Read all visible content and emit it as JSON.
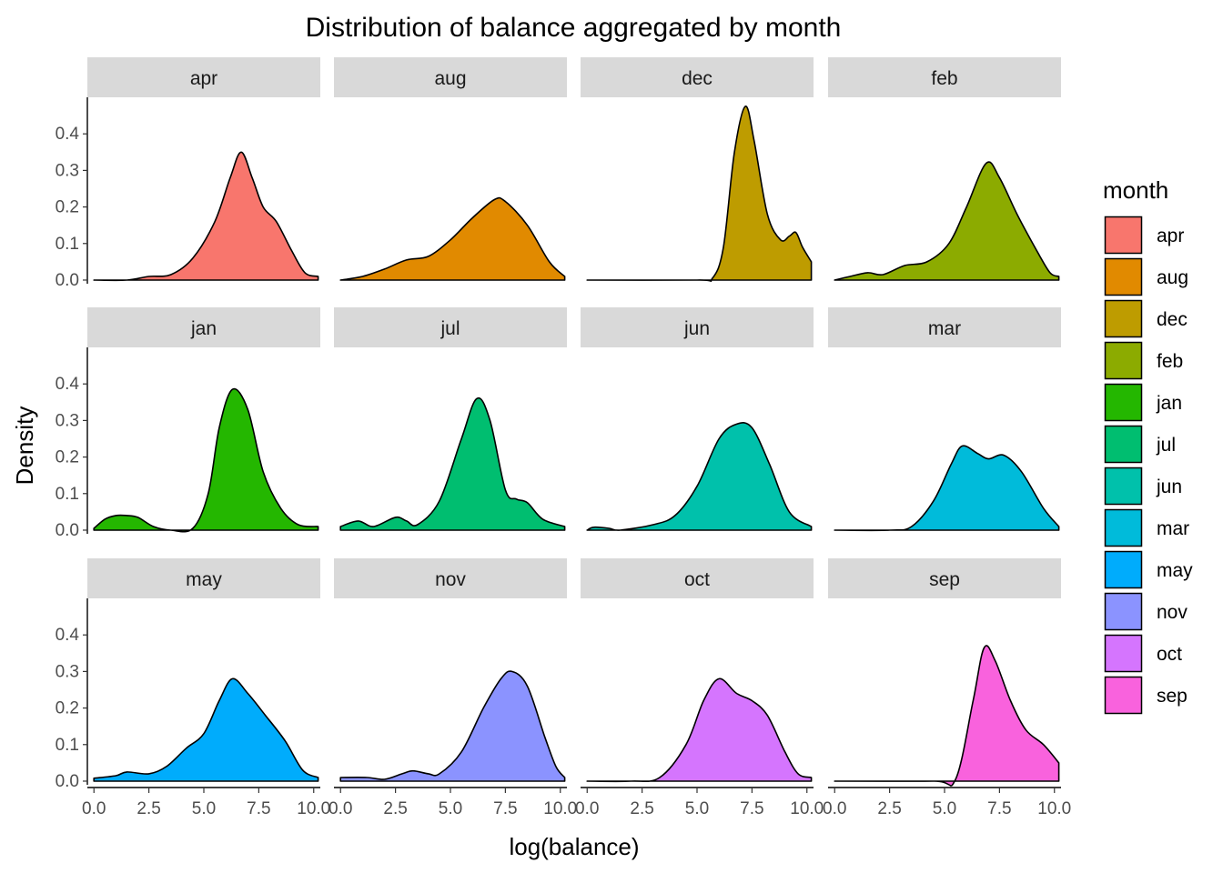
{
  "chart_data": {
    "type": "area",
    "subtype": "faceted density",
    "title": "Distribution of balance aggregated by month",
    "xlabel": "log(balance)",
    "ylabel": "Density",
    "xlim": [
      -0.3,
      10.3
    ],
    "ylim": [
      -0.01,
      0.5
    ],
    "x_ticks": [
      0,
      2.5,
      5,
      7.5,
      10
    ],
    "x_tick_labels": [
      "0.0",
      "2.5",
      "5.0",
      "7.5",
      "10.0"
    ],
    "y_ticks": [
      0,
      0.1,
      0.2,
      0.3,
      0.4
    ],
    "y_tick_labels": [
      "0.0",
      "0.1",
      "0.2",
      "0.3",
      "0.4"
    ],
    "grid": false,
    "legend": {
      "title": "month",
      "position": "right"
    },
    "facets": [
      {
        "name": "apr",
        "color": "#F8766D",
        "points": [
          [
            0,
            0
          ],
          [
            1.5,
            0
          ],
          [
            2.5,
            0.01
          ],
          [
            3.5,
            0.015
          ],
          [
            4.5,
            0.06
          ],
          [
            5.5,
            0.16
          ],
          [
            6.2,
            0.28
          ],
          [
            6.7,
            0.35
          ],
          [
            7.2,
            0.28
          ],
          [
            7.7,
            0.2
          ],
          [
            8.3,
            0.16
          ],
          [
            9,
            0.08
          ],
          [
            9.6,
            0.02
          ],
          [
            10.2,
            0.01
          ]
        ]
      },
      {
        "name": "aug",
        "color": "#E18A00",
        "points": [
          [
            0,
            0
          ],
          [
            1,
            0.01
          ],
          [
            2,
            0.03
          ],
          [
            3,
            0.055
          ],
          [
            4,
            0.065
          ],
          [
            5,
            0.11
          ],
          [
            6,
            0.17
          ],
          [
            7,
            0.22
          ],
          [
            7.5,
            0.215
          ],
          [
            8.5,
            0.15
          ],
          [
            9.5,
            0.05
          ],
          [
            10.2,
            0.01
          ]
        ]
      },
      {
        "name": "dec",
        "color": "#BE9C00",
        "points": [
          [
            0,
            0
          ],
          [
            5,
            0
          ],
          [
            5.7,
            0.005
          ],
          [
            6.2,
            0.09
          ],
          [
            6.7,
            0.35
          ],
          [
            7.2,
            0.475
          ],
          [
            7.6,
            0.38
          ],
          [
            8.2,
            0.18
          ],
          [
            8.8,
            0.11
          ],
          [
            9.2,
            0.12
          ],
          [
            9.5,
            0.13
          ],
          [
            9.8,
            0.09
          ],
          [
            10.2,
            0.05
          ]
        ]
      },
      {
        "name": "feb",
        "color": "#8CAB00",
        "points": [
          [
            0,
            0
          ],
          [
            0.7,
            0.01
          ],
          [
            1.5,
            0.02
          ],
          [
            2.2,
            0.015
          ],
          [
            3.2,
            0.04
          ],
          [
            4.2,
            0.05
          ],
          [
            5.2,
            0.1
          ],
          [
            6,
            0.2
          ],
          [
            6.9,
            0.32
          ],
          [
            7.5,
            0.28
          ],
          [
            8.3,
            0.18
          ],
          [
            9.2,
            0.08
          ],
          [
            9.8,
            0.02
          ],
          [
            10.2,
            0.01
          ]
        ]
      },
      {
        "name": "jan",
        "color": "#24B700",
        "points": [
          [
            0,
            0.005
          ],
          [
            0.5,
            0.03
          ],
          [
            1,
            0.04
          ],
          [
            1.5,
            0.04
          ],
          [
            2,
            0.035
          ],
          [
            2.7,
            0.01
          ],
          [
            3.5,
            0
          ],
          [
            4.5,
            0.005
          ],
          [
            5.2,
            0.1
          ],
          [
            5.7,
            0.28
          ],
          [
            6.3,
            0.385
          ],
          [
            7,
            0.33
          ],
          [
            7.7,
            0.16
          ],
          [
            8.5,
            0.06
          ],
          [
            9.3,
            0.015
          ],
          [
            10.2,
            0.01
          ]
        ]
      },
      {
        "name": "jul",
        "color": "#00BE70",
        "points": [
          [
            0,
            0.01
          ],
          [
            0.8,
            0.025
          ],
          [
            1.5,
            0.01
          ],
          [
            2.5,
            0.035
          ],
          [
            3,
            0.025
          ],
          [
            3.5,
            0.015
          ],
          [
            4.5,
            0.08
          ],
          [
            5.5,
            0.25
          ],
          [
            6.2,
            0.36
          ],
          [
            6.8,
            0.3
          ],
          [
            7.5,
            0.11
          ],
          [
            8,
            0.085
          ],
          [
            8.5,
            0.075
          ],
          [
            9.2,
            0.03
          ],
          [
            10.2,
            0.01
          ]
        ]
      },
      {
        "name": "jun",
        "color": "#00C1AB",
        "points": [
          [
            0,
            0
          ],
          [
            0.3,
            0.008
          ],
          [
            1,
            0.005
          ],
          [
            1.5,
            0
          ],
          [
            3,
            0.015
          ],
          [
            4,
            0.04
          ],
          [
            5,
            0.12
          ],
          [
            6,
            0.25
          ],
          [
            6.8,
            0.29
          ],
          [
            7.5,
            0.28
          ],
          [
            8.3,
            0.18
          ],
          [
            9.2,
            0.05
          ],
          [
            10.2,
            0.01
          ]
        ]
      },
      {
        "name": "mar",
        "color": "#00BBDA",
        "points": [
          [
            0,
            0
          ],
          [
            2.5,
            0
          ],
          [
            3.5,
            0.01
          ],
          [
            4.5,
            0.08
          ],
          [
            5.3,
            0.18
          ],
          [
            5.8,
            0.23
          ],
          [
            6.5,
            0.21
          ],
          [
            7,
            0.195
          ],
          [
            7.7,
            0.205
          ],
          [
            8.5,
            0.16
          ],
          [
            9.5,
            0.06
          ],
          [
            10.2,
            0.01
          ]
        ]
      },
      {
        "name": "may",
        "color": "#00ACFC",
        "points": [
          [
            0,
            0.008
          ],
          [
            1,
            0.015
          ],
          [
            1.5,
            0.025
          ],
          [
            2.5,
            0.02
          ],
          [
            3.3,
            0.04
          ],
          [
            4.2,
            0.09
          ],
          [
            5,
            0.13
          ],
          [
            5.7,
            0.22
          ],
          [
            6.3,
            0.28
          ],
          [
            7,
            0.24
          ],
          [
            7.8,
            0.18
          ],
          [
            8.7,
            0.11
          ],
          [
            9.5,
            0.03
          ],
          [
            10.2,
            0.01
          ]
        ]
      },
      {
        "name": "nov",
        "color": "#8B93FF",
        "points": [
          [
            0,
            0.01
          ],
          [
            1.2,
            0.01
          ],
          [
            2,
            0.005
          ],
          [
            2.8,
            0.02
          ],
          [
            3.3,
            0.028
          ],
          [
            4,
            0.02
          ],
          [
            4.5,
            0.02
          ],
          [
            5.5,
            0.08
          ],
          [
            6.5,
            0.2
          ],
          [
            7.3,
            0.28
          ],
          [
            7.8,
            0.3
          ],
          [
            8.5,
            0.26
          ],
          [
            9.3,
            0.12
          ],
          [
            9.8,
            0.04
          ],
          [
            10.2,
            0.01
          ]
        ]
      },
      {
        "name": "oct",
        "color": "#D575FE",
        "points": [
          [
            0,
            0
          ],
          [
            2,
            0
          ],
          [
            3.3,
            0.01
          ],
          [
            4.5,
            0.1
          ],
          [
            5.3,
            0.22
          ],
          [
            6,
            0.28
          ],
          [
            6.8,
            0.24
          ],
          [
            7.5,
            0.22
          ],
          [
            8.2,
            0.18
          ],
          [
            9,
            0.08
          ],
          [
            9.6,
            0.02
          ],
          [
            10.2,
            0.01
          ]
        ]
      },
      {
        "name": "sep",
        "color": "#F962DD",
        "points": [
          [
            0,
            0
          ],
          [
            4.5,
            0
          ],
          [
            5.5,
            0.005
          ],
          [
            6.3,
            0.22
          ],
          [
            6.8,
            0.365
          ],
          [
            7.3,
            0.33
          ],
          [
            8,
            0.22
          ],
          [
            8.7,
            0.14
          ],
          [
            9.5,
            0.1
          ],
          [
            10.2,
            0.05
          ]
        ]
      }
    ],
    "legend_colors": [
      "#F8766D",
      "#E18A00",
      "#BE9C00",
      "#8CAB00",
      "#24B700",
      "#00BE70",
      "#00C1AB",
      "#00BBDA",
      "#00ACFC",
      "#8B93FF",
      "#D575FE",
      "#F962DD"
    ]
  }
}
